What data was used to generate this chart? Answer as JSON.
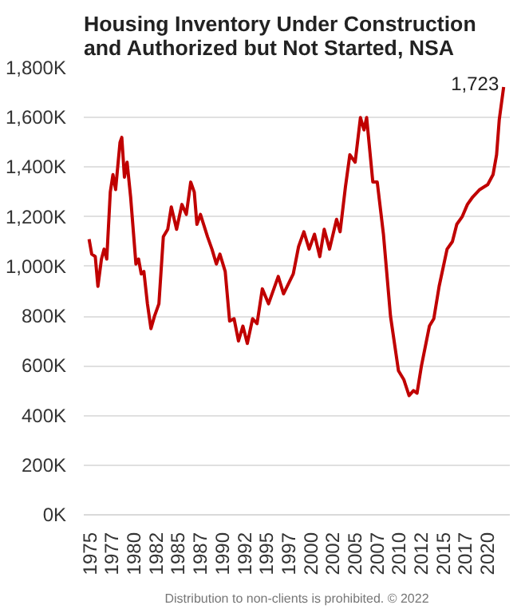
{
  "chart_data": {
    "type": "line",
    "title": "Housing Inventory Under Construction\nand Authorized but Not Started, NSA",
    "annotations": [
      {
        "text": "1,723",
        "x": 2021.9,
        "y": 1723
      },
      "Distribution to non-clients is prohibited. © 2022"
    ],
    "xlim": [
      1974.4,
      2022.6
    ],
    "ylim": [
      0,
      1800
    ],
    "xticks": [
      1975,
      {
        "value": 1977.5,
        "label": "1977"
      },
      1980,
      {
        "value": 1982.5,
        "label": "1982"
      },
      1985,
      {
        "value": 1987.5,
        "label": "1987"
      },
      1990,
      {
        "value": 1992.5,
        "label": "1992"
      },
      1995,
      {
        "value": 1997.5,
        "label": "1997"
      },
      2000,
      {
        "value": 2002.5,
        "label": "2002"
      },
      2005,
      {
        "value": 2007.5,
        "label": "2007"
      },
      2010,
      {
        "value": 2012.5,
        "label": "2012"
      },
      2015,
      {
        "value": 2017.5,
        "label": "2017"
      },
      2020
    ],
    "yticks": [
      {
        "value": 0,
        "label": "0K"
      },
      {
        "value": 200,
        "label": "200K"
      },
      {
        "value": 400,
        "label": "400K"
      },
      {
        "value": 600,
        "label": "600K"
      },
      {
        "value": 800,
        "label": "800K"
      },
      {
        "value": 1000,
        "label": "1,000K"
      },
      {
        "value": 1200,
        "label": "1,200K"
      },
      {
        "value": 1400,
        "label": "1,400K"
      },
      {
        "value": 1600,
        "label": "1,600K"
      },
      {
        "value": 1800,
        "label": "1,800K"
      }
    ],
    "grid": "y",
    "marker": "none",
    "line_style": "solid",
    "series": [
      {
        "color": "#c00000",
        "x": [
          1975.0,
          1975.3,
          1975.7,
          1976.0,
          1976.4,
          1976.7,
          1977.0,
          1977.4,
          1977.7,
          1978.0,
          1978.5,
          1978.7,
          1979.0,
          1979.3,
          1979.7,
          1980.3,
          1980.6,
          1980.9,
          1981.2,
          1981.6,
          1982.0,
          1982.4,
          1982.9,
          1983.4,
          1983.9,
          1984.3,
          1984.9,
          1985.5,
          1986.0,
          1986.5,
          1986.9,
          1987.2,
          1987.6,
          1988.4,
          1988.9,
          1989.4,
          1989.8,
          1990.4,
          1990.9,
          1991.4,
          1991.9,
          1992.4,
          1992.9,
          1993.5,
          1994.0,
          1994.6,
          1995.3,
          1996.4,
          1997.0,
          1998.1,
          1998.7,
          1999.3,
          1999.9,
          2000.5,
          2001.1,
          2001.6,
          2002.2,
          2003.0,
          2003.4,
          2004.0,
          2004.5,
          2005.1,
          2005.7,
          2006.1,
          2006.4,
          2007.1,
          2007.6,
          2008.3,
          2009.1,
          2010.0,
          2010.6,
          2011.2,
          2011.7,
          2012.1,
          2012.6,
          2013.5,
          2014.0,
          2014.6,
          2015.5,
          2016.1,
          2016.6,
          2017.2,
          2017.8,
          2018.4,
          2019.2,
          2020.1,
          2020.7,
          2021.1,
          2021.4,
          2021.9
        ],
        "values": [
          1110,
          1050,
          1040,
          920,
          1030,
          1070,
          1030,
          1300,
          1370,
          1310,
          1500,
          1520,
          1360,
          1420,
          1280,
          1010,
          1030,
          970,
          980,
          850,
          750,
          800,
          850,
          1120,
          1150,
          1240,
          1150,
          1250,
          1210,
          1340,
          1300,
          1170,
          1210,
          1120,
          1070,
          1010,
          1050,
          980,
          780,
          790,
          700,
          760,
          690,
          790,
          770,
          910,
          850,
          960,
          890,
          970,
          1080,
          1140,
          1070,
          1130,
          1040,
          1150,
          1070,
          1190,
          1140,
          1320,
          1450,
          1420,
          1600,
          1550,
          1600,
          1340,
          1340,
          1130,
          800,
          580,
          545,
          480,
          500,
          490,
          600,
          760,
          790,
          920,
          1070,
          1100,
          1170,
          1200,
          1250,
          1280,
          1310,
          1330,
          1370,
          1450,
          1590,
          1723
        ]
      }
    ]
  }
}
